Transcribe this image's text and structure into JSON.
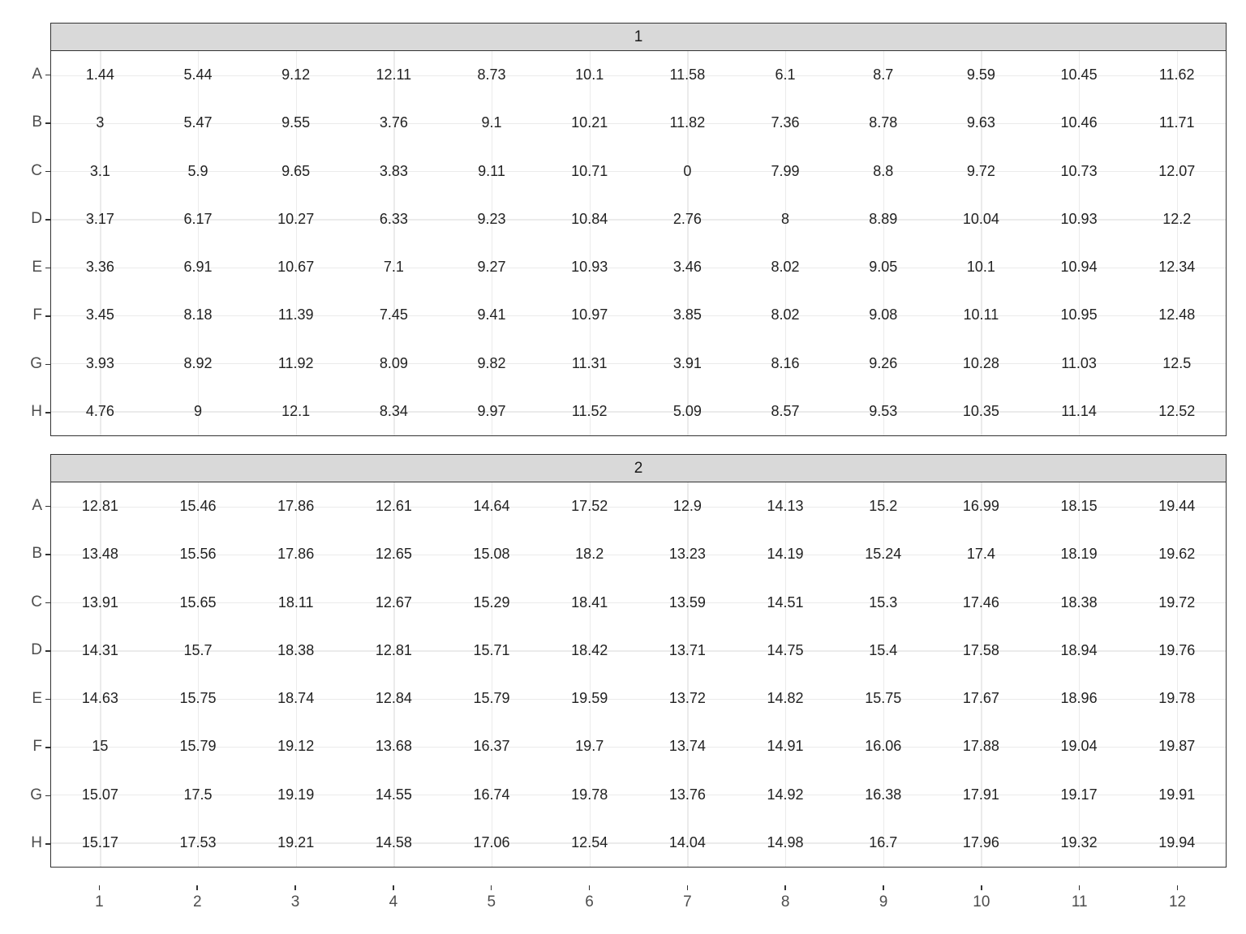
{
  "figure": {
    "type": "faceted-text-grid",
    "background_color": "#ffffff",
    "panel_border_color": "#333333",
    "panel_border_width": 1.5,
    "gridline_color": "#ebebeb",
    "gridline_width": 1.2,
    "strip_background": "#d9d9d9",
    "strip_text_color": "#1a1a1a",
    "axis_text_color": "#4d4d4d",
    "cell_text_color": "#222222",
    "axis_fontsize": 19,
    "strip_fontsize": 19,
    "cell_fontsize": 18,
    "x_labels": [
      "1",
      "2",
      "3",
      "4",
      "5",
      "6",
      "7",
      "8",
      "9",
      "10",
      "11",
      "12"
    ],
    "y_labels": [
      "A",
      "B",
      "C",
      "D",
      "E",
      "F",
      "G",
      "H"
    ],
    "facets": [
      {
        "strip": "1",
        "values": [
          [
            "1.44",
            "5.44",
            "9.12",
            "12.11",
            "8.73",
            "10.1",
            "11.58",
            "6.1",
            "8.7",
            "9.59",
            "10.45",
            "11.62"
          ],
          [
            "3",
            "5.47",
            "9.55",
            "3.76",
            "9.1",
            "10.21",
            "11.82",
            "7.36",
            "8.78",
            "9.63",
            "10.46",
            "11.71"
          ],
          [
            "3.1",
            "5.9",
            "9.65",
            "3.83",
            "9.11",
            "10.71",
            "0",
            "7.99",
            "8.8",
            "9.72",
            "10.73",
            "12.07"
          ],
          [
            "3.17",
            "6.17",
            "10.27",
            "6.33",
            "9.23",
            "10.84",
            "2.76",
            "8",
            "8.89",
            "10.04",
            "10.93",
            "12.2"
          ],
          [
            "3.36",
            "6.91",
            "10.67",
            "7.1",
            "9.27",
            "10.93",
            "3.46",
            "8.02",
            "9.05",
            "10.1",
            "10.94",
            "12.34"
          ],
          [
            "3.45",
            "8.18",
            "11.39",
            "7.45",
            "9.41",
            "10.97",
            "3.85",
            "8.02",
            "9.08",
            "10.11",
            "10.95",
            "12.48"
          ],
          [
            "3.93",
            "8.92",
            "11.92",
            "8.09",
            "9.82",
            "11.31",
            "3.91",
            "8.16",
            "9.26",
            "10.28",
            "11.03",
            "12.5"
          ],
          [
            "4.76",
            "9",
            "12.1",
            "8.34",
            "9.97",
            "11.52",
            "5.09",
            "8.57",
            "9.53",
            "10.35",
            "11.14",
            "12.52"
          ]
        ]
      },
      {
        "strip": "2",
        "values": [
          [
            "12.81",
            "15.46",
            "17.86",
            "12.61",
            "14.64",
            "17.52",
            "12.9",
            "14.13",
            "15.2",
            "16.99",
            "18.15",
            "19.44"
          ],
          [
            "13.48",
            "15.56",
            "17.86",
            "12.65",
            "15.08",
            "18.2",
            "13.23",
            "14.19",
            "15.24",
            "17.4",
            "18.19",
            "19.62"
          ],
          [
            "13.91",
            "15.65",
            "18.11",
            "12.67",
            "15.29",
            "18.41",
            "13.59",
            "14.51",
            "15.3",
            "17.46",
            "18.38",
            "19.72"
          ],
          [
            "14.31",
            "15.7",
            "18.38",
            "12.81",
            "15.71",
            "18.42",
            "13.71",
            "14.75",
            "15.4",
            "17.58",
            "18.94",
            "19.76"
          ],
          [
            "14.63",
            "15.75",
            "18.74",
            "12.84",
            "15.79",
            "19.59",
            "13.72",
            "14.82",
            "15.75",
            "17.67",
            "18.96",
            "19.78"
          ],
          [
            "15",
            "15.79",
            "19.12",
            "13.68",
            "16.37",
            "19.7",
            "13.74",
            "14.91",
            "16.06",
            "17.88",
            "19.04",
            "19.87"
          ],
          [
            "15.07",
            "17.5",
            "19.19",
            "14.55",
            "16.74",
            "19.78",
            "13.76",
            "14.92",
            "16.38",
            "17.91",
            "19.17",
            "19.91"
          ],
          [
            "15.17",
            "17.53",
            "19.21",
            "14.58",
            "17.06",
            "12.54",
            "14.04",
            "14.98",
            "16.7",
            "17.96",
            "19.32",
            "19.94"
          ]
        ]
      }
    ]
  }
}
